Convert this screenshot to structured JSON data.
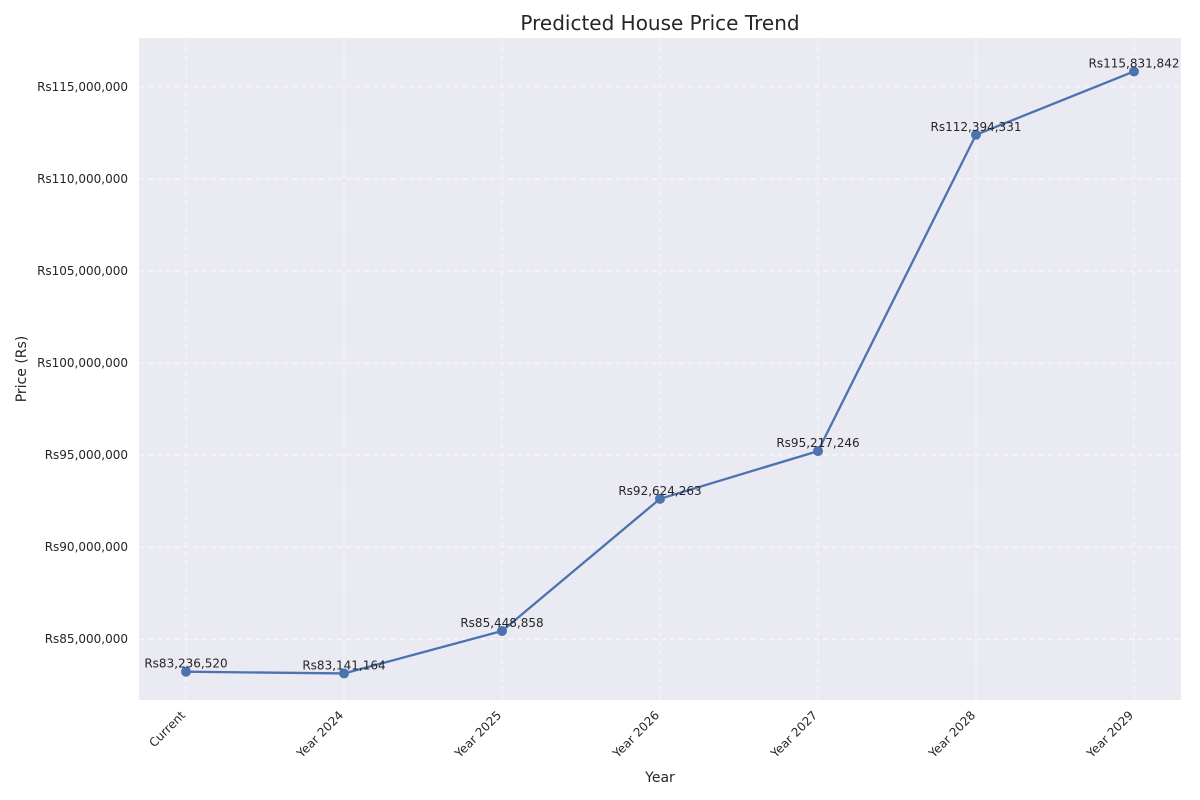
{
  "chart_data": {
    "type": "line",
    "title": "Predicted House Price Trend",
    "xlabel": "Year",
    "ylabel": "Price (Rs)",
    "categories": [
      "Current",
      "Year 2024",
      "Year 2025",
      "Year 2026",
      "Year 2027",
      "Year 2028",
      "Year 2029"
    ],
    "values": [
      83236520,
      83141164,
      85448858,
      92624263,
      95217246,
      112394331,
      115831842
    ],
    "data_labels": [
      "Rs83,236,520",
      "Rs83,141,164",
      "Rs85,448,858",
      "Rs92,624,263",
      "Rs95,217,246",
      "Rs112,394,331",
      "Rs115,831,842"
    ],
    "yticks": [
      85000000,
      90000000,
      95000000,
      100000000,
      105000000,
      110000000,
      115000000
    ],
    "ytick_labels": [
      "Rs85,000,000",
      "Rs90,000,000",
      "Rs95,000,000",
      "Rs100,000,000",
      "Rs105,000,000",
      "Rs110,000,000",
      "Rs115,000,000"
    ],
    "ylim": [
      81700000,
      117650000
    ],
    "grid": true,
    "colors": {
      "line": "#4c72b0",
      "plot_bg": "#eaeaf2",
      "grid": "#ffffff"
    }
  }
}
